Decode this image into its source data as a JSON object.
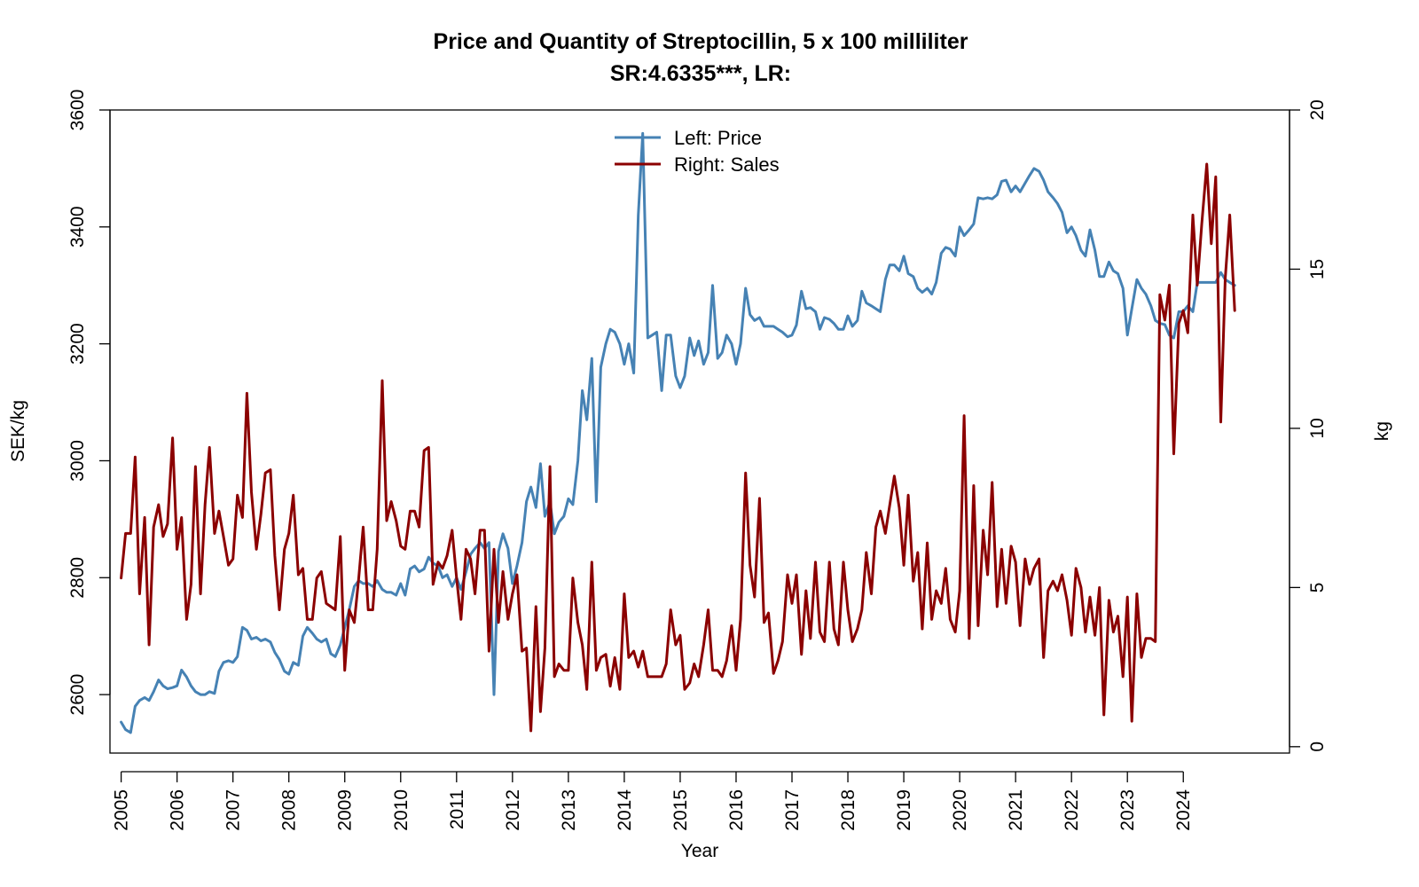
{
  "chart_data": {
    "type": "line",
    "title": "Price and Quantity of Streptocillin, 5 x 100 milliliter",
    "subtitle": "SR:4.6335***, LR:",
    "xlabel": "Year",
    "ylabel_left": "SEK/kg",
    "ylabel_right": "kg",
    "x_ticks": [
      "2005",
      "2006",
      "2007",
      "2008",
      "2009",
      "2010",
      "2011",
      "2012",
      "2013",
      "2014",
      "2015",
      "2016",
      "2017",
      "2018",
      "2019",
      "2020",
      "2021",
      "2022",
      "2023",
      "2024"
    ],
    "y_left_ticks": [
      "2600",
      "2800",
      "3000",
      "3200",
      "3400",
      "3600"
    ],
    "y_right_ticks": [
      "0",
      "5",
      "10",
      "15",
      "20"
    ],
    "xlim": [
      2004.8,
      2025.9
    ],
    "ylim_left": [
      2500,
      3600
    ],
    "ylim_right": [
      -0.2,
      20
    ],
    "legend": {
      "placement": "top-center",
      "entries": [
        "Left: Price",
        "Right: Sales"
      ]
    },
    "series": [
      {
        "name": "Left: Price",
        "axis": "left",
        "color": "#4682B4",
        "x": [
          2005.0,
          2005.08,
          2005.17,
          2005.25,
          2005.33,
          2005.42,
          2005.5,
          2005.58,
          2005.67,
          2005.75,
          2005.83,
          2005.92,
          2006.0,
          2006.08,
          2006.17,
          2006.25,
          2006.33,
          2006.42,
          2006.5,
          2006.58,
          2006.67,
          2006.75,
          2006.83,
          2006.92,
          2007.0,
          2007.08,
          2007.17,
          2007.25,
          2007.33,
          2007.42,
          2007.5,
          2007.58,
          2007.67,
          2007.75,
          2007.83,
          2007.92,
          2008.0,
          2008.08,
          2008.17,
          2008.25,
          2008.33,
          2008.42,
          2008.5,
          2008.58,
          2008.67,
          2008.75,
          2008.83,
          2008.92,
          2009.0,
          2009.08,
          2009.17,
          2009.25,
          2009.33,
          2009.42,
          2009.5,
          2009.58,
          2009.67,
          2009.75,
          2009.83,
          2009.92,
          2010.0,
          2010.08,
          2010.17,
          2010.25,
          2010.33,
          2010.42,
          2010.5,
          2010.58,
          2010.67,
          2010.75,
          2010.83,
          2010.92,
          2011.0,
          2011.08,
          2011.17,
          2011.25,
          2011.33,
          2011.42,
          2011.5,
          2011.58,
          2011.67,
          2011.75,
          2011.83,
          2011.92,
          2012.0,
          2012.08,
          2012.17,
          2012.25,
          2012.33,
          2012.42,
          2012.5,
          2012.58,
          2012.67,
          2012.75,
          2012.83,
          2012.92,
          2013.0,
          2013.08,
          2013.17,
          2013.25,
          2013.33,
          2013.42,
          2013.5,
          2013.58,
          2013.67,
          2013.75,
          2013.83,
          2013.92,
          2014.0,
          2014.08,
          2014.17,
          2014.25,
          2014.33,
          2014.42,
          2014.5,
          2014.58,
          2014.67,
          2014.75,
          2014.83,
          2014.92,
          2015.0,
          2015.08,
          2015.17,
          2015.25,
          2015.33,
          2015.42,
          2015.5,
          2015.58,
          2015.67,
          2015.75,
          2015.83,
          2015.92,
          2016.0,
          2016.08,
          2016.17,
          2016.25,
          2016.33,
          2016.42,
          2016.5,
          2016.58,
          2016.67,
          2016.75,
          2016.83,
          2016.92,
          2017.0,
          2017.08,
          2017.17,
          2017.25,
          2017.33,
          2017.42,
          2017.5,
          2017.58,
          2017.67,
          2017.75,
          2017.83,
          2017.92,
          2018.0,
          2018.08,
          2018.17,
          2018.25,
          2018.33,
          2018.42,
          2018.5,
          2018.58,
          2018.67,
          2018.75,
          2018.83,
          2018.92,
          2019.0,
          2019.08,
          2019.17,
          2019.25,
          2019.33,
          2019.42,
          2019.5,
          2019.58,
          2019.67,
          2019.75,
          2019.83,
          2019.92,
          2020.0,
          2020.08,
          2020.17,
          2020.25,
          2020.33,
          2020.42,
          2020.5,
          2020.58,
          2020.67,
          2020.75,
          2020.83,
          2020.92,
          2021.0,
          2021.08,
          2021.17,
          2021.25,
          2021.33,
          2021.42,
          2021.5,
          2021.58,
          2021.67,
          2021.75,
          2021.83,
          2021.92,
          2022.0,
          2022.08,
          2022.17,
          2022.25,
          2022.33,
          2022.42,
          2022.5,
          2022.58,
          2022.67,
          2022.75,
          2022.83,
          2022.92,
          2023.0,
          2023.08,
          2023.17,
          2023.25,
          2023.33,
          2023.42,
          2023.5,
          2023.58,
          2023.67,
          2023.75,
          2023.83,
          2023.92,
          2024.0,
          2024.08,
          2024.17,
          2024.25,
          2024.33,
          2024.42,
          2024.5,
          2024.58,
          2024.67,
          2024.75,
          2024.83,
          2024.92
        ],
        "y": [
          2553,
          2540,
          2535,
          2580,
          2590,
          2595,
          2590,
          2605,
          2625,
          2615,
          2610,
          2612,
          2615,
          2642,
          2630,
          2615,
          2605,
          2600,
          2600,
          2605,
          2602,
          2640,
          2655,
          2658,
          2655,
          2665,
          2715,
          2710,
          2695,
          2698,
          2692,
          2695,
          2690,
          2672,
          2660,
          2640,
          2635,
          2655,
          2650,
          2700,
          2715,
          2705,
          2695,
          2690,
          2695,
          2670,
          2665,
          2685,
          2715,
          2745,
          2785,
          2795,
          2790,
          2790,
          2785,
          2795,
          2780,
          2775,
          2775,
          2770,
          2790,
          2770,
          2815,
          2820,
          2810,
          2815,
          2835,
          2825,
          2820,
          2800,
          2805,
          2785,
          2800,
          2780,
          2810,
          2840,
          2850,
          2860,
          2850,
          2860,
          2600,
          2845,
          2875,
          2850,
          2790,
          2820,
          2860,
          2930,
          2955,
          2920,
          2995,
          2905,
          2930,
          2875,
          2895,
          2905,
          2935,
          2925,
          3000,
          3120,
          3070,
          3175,
          2930,
          3160,
          3200,
          3225,
          3220,
          3200,
          3165,
          3200,
          3150,
          3420,
          3560,
          3210,
          3215,
          3220,
          3120,
          3215,
          3215,
          3145,
          3125,
          3145,
          3210,
          3180,
          3205,
          3165,
          3185,
          3300,
          3175,
          3185,
          3215,
          3200,
          3165,
          3200,
          3295,
          3250,
          3240,
          3245,
          3230,
          3230,
          3230,
          3225,
          3220,
          3212,
          3215,
          3232,
          3290,
          3260,
          3262,
          3255,
          3225,
          3245,
          3242,
          3235,
          3225,
          3225,
          3248,
          3230,
          3240,
          3290,
          3270,
          3265,
          3260,
          3255,
          3310,
          3335,
          3335,
          3325,
          3350,
          3320,
          3315,
          3295,
          3288,
          3295,
          3285,
          3305,
          3355,
          3365,
          3362,
          3350,
          3400,
          3385,
          3395,
          3405,
          3450,
          3448,
          3450,
          3448,
          3455,
          3478,
          3480,
          3460,
          3470,
          3460,
          3475,
          3488,
          3500,
          3495,
          3480,
          3460,
          3450,
          3440,
          3425,
          3390,
          3400,
          3385,
          3360,
          3350,
          3395,
          3360,
          3315,
          3315,
          3340,
          3325,
          3320,
          3295,
          3215,
          3260,
          3310,
          3295,
          3285,
          3265,
          3240,
          3235,
          3233,
          3215,
          3210,
          3255,
          3255,
          3265,
          3255,
          3305,
          3305,
          3305,
          3305,
          3305,
          3322,
          3310,
          3305,
          3300
        ]
      },
      {
        "name": "Right: Sales",
        "axis": "right",
        "color": "#8B0000",
        "x": [
          2005.0,
          2005.08,
          2005.17,
          2005.25,
          2005.33,
          2005.42,
          2005.5,
          2005.58,
          2005.67,
          2005.75,
          2005.83,
          2005.92,
          2006.0,
          2006.08,
          2006.17,
          2006.25,
          2006.33,
          2006.42,
          2006.5,
          2006.58,
          2006.67,
          2006.75,
          2006.83,
          2006.92,
          2007.0,
          2007.08,
          2007.17,
          2007.25,
          2007.33,
          2007.42,
          2007.5,
          2007.58,
          2007.67,
          2007.75,
          2007.83,
          2007.92,
          2008.0,
          2008.08,
          2008.17,
          2008.25,
          2008.33,
          2008.42,
          2008.5,
          2008.58,
          2008.67,
          2008.75,
          2008.83,
          2008.92,
          2009.0,
          2009.08,
          2009.17,
          2009.25,
          2009.33,
          2009.42,
          2009.5,
          2009.58,
          2009.67,
          2009.75,
          2009.83,
          2009.92,
          2010.0,
          2010.08,
          2010.17,
          2010.25,
          2010.33,
          2010.42,
          2010.5,
          2010.58,
          2010.67,
          2010.75,
          2010.83,
          2010.92,
          2011.0,
          2011.08,
          2011.17,
          2011.25,
          2011.33,
          2011.42,
          2011.5,
          2011.58,
          2011.67,
          2011.75,
          2011.83,
          2011.92,
          2012.0,
          2012.08,
          2012.17,
          2012.25,
          2012.33,
          2012.42,
          2012.5,
          2012.58,
          2012.67,
          2012.75,
          2012.83,
          2012.92,
          2013.0,
          2013.08,
          2013.17,
          2013.25,
          2013.33,
          2013.42,
          2013.5,
          2013.58,
          2013.67,
          2013.75,
          2013.83,
          2013.92,
          2014.0,
          2014.08,
          2014.17,
          2014.25,
          2014.33,
          2014.42,
          2014.5,
          2014.58,
          2014.67,
          2014.75,
          2014.83,
          2014.92,
          2015.0,
          2015.08,
          2015.17,
          2015.25,
          2015.33,
          2015.42,
          2015.5,
          2015.58,
          2015.67,
          2015.75,
          2015.83,
          2015.92,
          2016.0,
          2016.08,
          2016.17,
          2016.25,
          2016.33,
          2016.42,
          2016.5,
          2016.58,
          2016.67,
          2016.75,
          2016.83,
          2016.92,
          2017.0,
          2017.08,
          2017.17,
          2017.25,
          2017.33,
          2017.42,
          2017.5,
          2017.58,
          2017.67,
          2017.75,
          2017.83,
          2017.92,
          2018.0,
          2018.08,
          2018.17,
          2018.25,
          2018.33,
          2018.42,
          2018.5,
          2018.58,
          2018.67,
          2018.75,
          2018.83,
          2018.92,
          2019.0,
          2019.08,
          2019.17,
          2019.25,
          2019.33,
          2019.42,
          2019.5,
          2019.58,
          2019.67,
          2019.75,
          2019.83,
          2019.92,
          2020.0,
          2020.08,
          2020.17,
          2020.25,
          2020.33,
          2020.42,
          2020.5,
          2020.58,
          2020.67,
          2020.75,
          2020.83,
          2020.92,
          2021.0,
          2021.08,
          2021.17,
          2021.25,
          2021.33,
          2021.42,
          2021.5,
          2021.58,
          2021.67,
          2021.75,
          2021.83,
          2021.92,
          2022.0,
          2022.08,
          2022.17,
          2022.25,
          2022.33,
          2022.42,
          2022.5,
          2022.58,
          2022.67,
          2022.75,
          2022.83,
          2022.92,
          2023.0,
          2023.08,
          2023.17,
          2023.25,
          2023.33,
          2023.42,
          2023.5,
          2023.58,
          2023.67,
          2023.75,
          2023.83,
          2023.92,
          2024.0,
          2024.08,
          2024.17,
          2024.25,
          2024.33,
          2024.42,
          2024.5,
          2024.58,
          2024.67,
          2024.75,
          2024.83,
          2024.92
        ],
        "y": [
          5.3,
          6.7,
          6.7,
          9.1,
          4.8,
          7.2,
          3.2,
          6.9,
          7.6,
          6.6,
          7.0,
          9.7,
          6.2,
          7.2,
          4.0,
          5.1,
          8.8,
          4.8,
          7.6,
          9.4,
          6.7,
          7.4,
          6.6,
          5.7,
          5.9,
          7.9,
          7.2,
          11.1,
          8.0,
          6.2,
          7.3,
          8.6,
          8.7,
          6.0,
          4.3,
          6.2,
          6.7,
          7.9,
          5.4,
          5.6,
          4.0,
          4.0,
          5.3,
          5.5,
          4.5,
          4.4,
          4.3,
          6.6,
          2.4,
          4.3,
          3.9,
          5.3,
          6.9,
          4.3,
          4.3,
          6.2,
          11.5,
          7.1,
          7.7,
          7.1,
          6.3,
          6.2,
          7.4,
          7.4,
          6.9,
          9.3,
          9.4,
          5.1,
          5.8,
          5.6,
          6.0,
          6.8,
          5.3,
          4.0,
          6.2,
          5.9,
          4.8,
          6.8,
          6.8,
          3.0,
          6.2,
          3.9,
          5.5,
          4.0,
          4.8,
          5.4,
          3.0,
          3.1,
          0.5,
          4.4,
          1.1,
          3.1,
          8.8,
          2.2,
          2.6,
          2.4,
          2.4,
          5.3,
          3.9,
          3.2,
          1.8,
          5.8,
          2.4,
          2.8,
          2.9,
          1.9,
          2.8,
          1.8,
          4.8,
          2.8,
          3.0,
          2.5,
          3.0,
          2.2,
          2.2,
          2.2,
          2.2,
          2.6,
          4.3,
          3.2,
          3.5,
          1.8,
          2.0,
          2.6,
          2.2,
          3.2,
          4.3,
          2.4,
          2.4,
          2.2,
          2.7,
          3.8,
          2.4,
          4.0,
          8.6,
          5.7,
          4.7,
          7.8,
          3.9,
          4.2,
          2.3,
          2.7,
          3.3,
          5.4,
          4.5,
          5.4,
          2.9,
          4.9,
          3.4,
          5.8,
          3.6,
          3.3,
          5.8,
          3.7,
          3.2,
          5.8,
          4.3,
          3.3,
          3.7,
          4.3,
          6.1,
          4.8,
          6.9,
          7.4,
          6.7,
          7.6,
          8.5,
          7.5,
          5.7,
          7.9,
          5.2,
          6.1,
          3.7,
          6.4,
          4.0,
          4.9,
          4.5,
          5.6,
          4.0,
          3.6,
          4.9,
          10.4,
          3.4,
          8.2,
          3.8,
          6.8,
          5.4,
          8.3,
          4.4,
          6.2,
          4.5,
          6.3,
          5.8,
          3.8,
          5.9,
          5.1,
          5.6,
          5.9,
          2.8,
          4.9,
          5.2,
          4.9,
          5.4,
          4.6,
          3.5,
          5.6,
          5.0,
          3.6,
          4.7,
          3.5,
          5.0,
          1.0,
          4.6,
          3.6,
          4.1,
          2.2,
          4.7,
          0.8,
          4.8,
          2.8,
          3.4,
          3.4,
          3.3,
          14.2,
          13.4,
          14.5,
          9.2,
          13.3,
          13.7,
          13.0,
          16.7,
          14.5,
          16.4,
          18.3,
          15.8,
          17.9,
          10.2,
          14.7,
          16.7,
          13.7
        ]
      }
    ]
  }
}
